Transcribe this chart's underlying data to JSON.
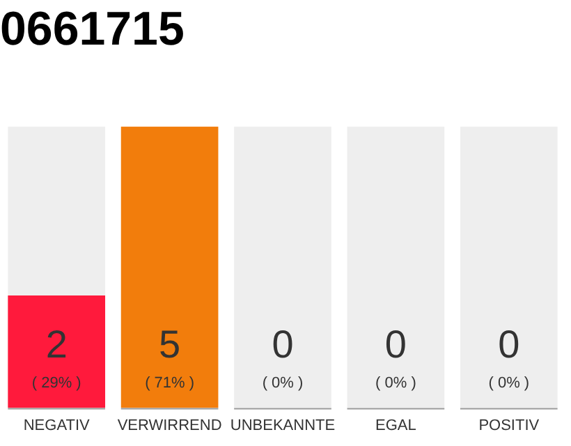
{
  "chart_data": {
    "type": "bar",
    "title": "0661715",
    "categories": [
      "NEGATIV",
      "VERWIRREND",
      "UNBEKANNTE",
      "EGAL",
      "POSITIV"
    ],
    "series": [
      {
        "values": [
          2,
          5,
          0,
          0,
          0
        ],
        "colors": [
          "#ff1a3c",
          "#f27d0c",
          "#f27d0c",
          "#f27d0c",
          "#f27d0c"
        ],
        "value_labels": [
          "2",
          "5",
          "0",
          "0",
          "0"
        ]
      },
      {
        "values": [
          5,
          null,
          5,
          5,
          5
        ],
        "color": "#eeeeee"
      }
    ],
    "ylim": [
      0,
      5
    ],
    "tick_labels": "x",
    "annotations": [
      {
        "text": "( 29% )",
        "x": "NEGATIV",
        "y": 0
      },
      {
        "text": "( 71% )",
        "x": "VERWIRREND",
        "y": 0
      },
      {
        "text": "( 0% )",
        "x": "UNBEKANNTE",
        "y": 0
      },
      {
        "text": "( 0% )",
        "x": "EGAL",
        "y": 0
      },
      {
        "text": "( 0% )",
        "x": "POSITIV",
        "y": 0
      }
    ],
    "grid": false,
    "legend": false
  }
}
